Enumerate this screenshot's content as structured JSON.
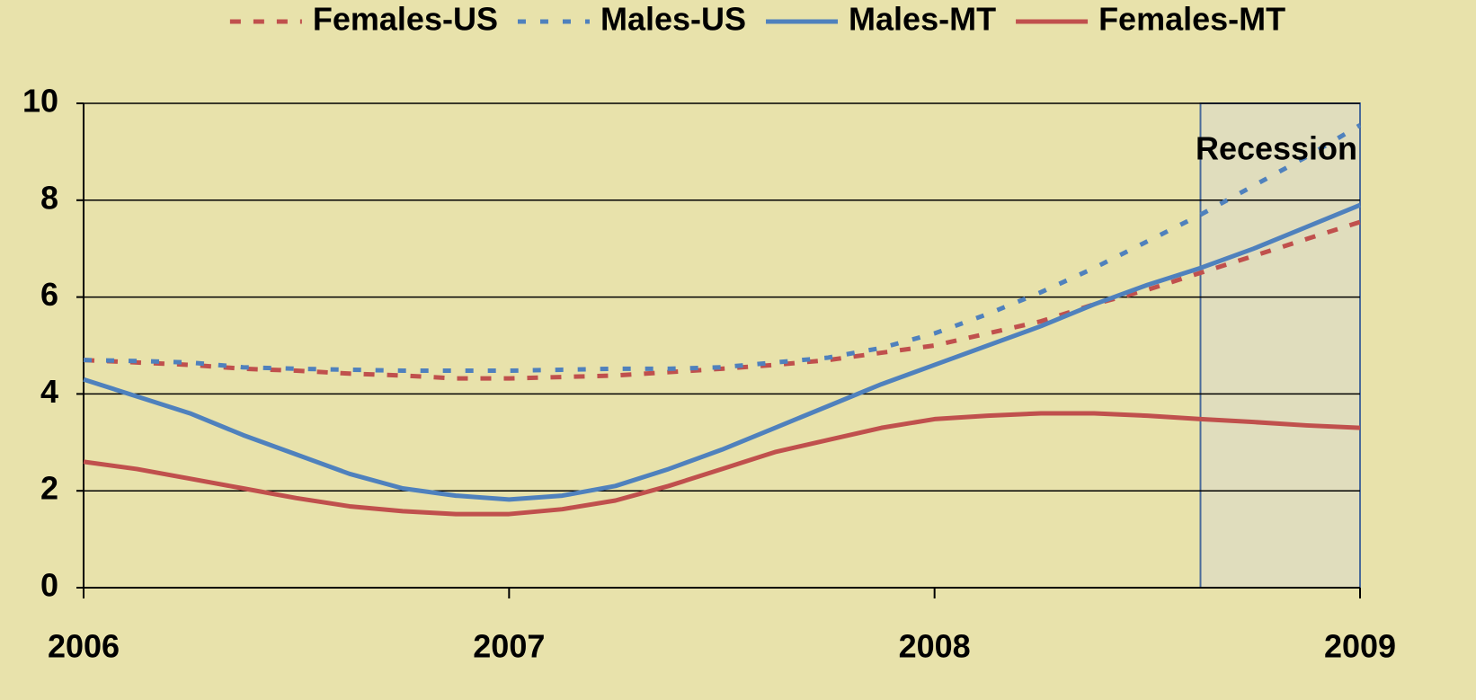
{
  "chart_data": {
    "type": "line",
    "x": [
      2006,
      2006.125,
      2006.25,
      2006.375,
      2006.5,
      2006.625,
      2006.75,
      2006.875,
      2007,
      2007.125,
      2007.25,
      2007.375,
      2007.5,
      2007.625,
      2007.75,
      2007.875,
      2008,
      2008.125,
      2008.25,
      2008.375,
      2008.5,
      2008.625,
      2008.75,
      2008.875,
      2009
    ],
    "series": [
      {
        "name": "Females-US",
        "color": "#c0504d",
        "dash": "dashed",
        "values": [
          4.7,
          4.65,
          4.6,
          4.52,
          4.48,
          4.42,
          4.38,
          4.32,
          4.32,
          4.35,
          4.38,
          4.45,
          4.52,
          4.6,
          4.7,
          4.85,
          5.0,
          5.25,
          5.5,
          5.85,
          6.15,
          6.5,
          6.85,
          7.2,
          7.55
        ]
      },
      {
        "name": "Males-US",
        "color": "#4f81bd",
        "dash": "dotted",
        "values": [
          4.7,
          4.68,
          4.65,
          4.55,
          4.52,
          4.5,
          4.48,
          4.48,
          4.48,
          4.5,
          4.52,
          4.52,
          4.55,
          4.65,
          4.75,
          4.95,
          5.25,
          5.65,
          6.1,
          6.6,
          7.15,
          7.7,
          8.3,
          8.9,
          9.55
        ]
      },
      {
        "name": "Males-MT",
        "color": "#4f81bd",
        "dash": "solid",
        "values": [
          4.3,
          3.95,
          3.6,
          3.15,
          2.75,
          2.35,
          2.05,
          1.9,
          1.82,
          1.9,
          2.1,
          2.45,
          2.85,
          3.3,
          3.75,
          4.2,
          4.6,
          5.0,
          5.4,
          5.85,
          6.25,
          6.6,
          7.0,
          7.45,
          7.9
        ]
      },
      {
        "name": "Females-MT",
        "color": "#c0504d",
        "dash": "solid",
        "values": [
          2.6,
          2.45,
          2.25,
          2.05,
          1.85,
          1.68,
          1.58,
          1.52,
          1.52,
          1.62,
          1.8,
          2.1,
          2.45,
          2.8,
          3.05,
          3.3,
          3.48,
          3.55,
          3.6,
          3.6,
          3.55,
          3.48,
          3.42,
          3.35,
          3.3
        ]
      }
    ],
    "xlim": [
      2006,
      2009
    ],
    "xticks": [
      2006,
      2007,
      2008,
      2009
    ],
    "ylim": [
      0,
      10
    ],
    "yticks": [
      0,
      2,
      4,
      6,
      8,
      10
    ],
    "grid": true,
    "legend": "top",
    "recession": {
      "label": "Recession",
      "start": 2008.625,
      "end": 2009
    }
  }
}
